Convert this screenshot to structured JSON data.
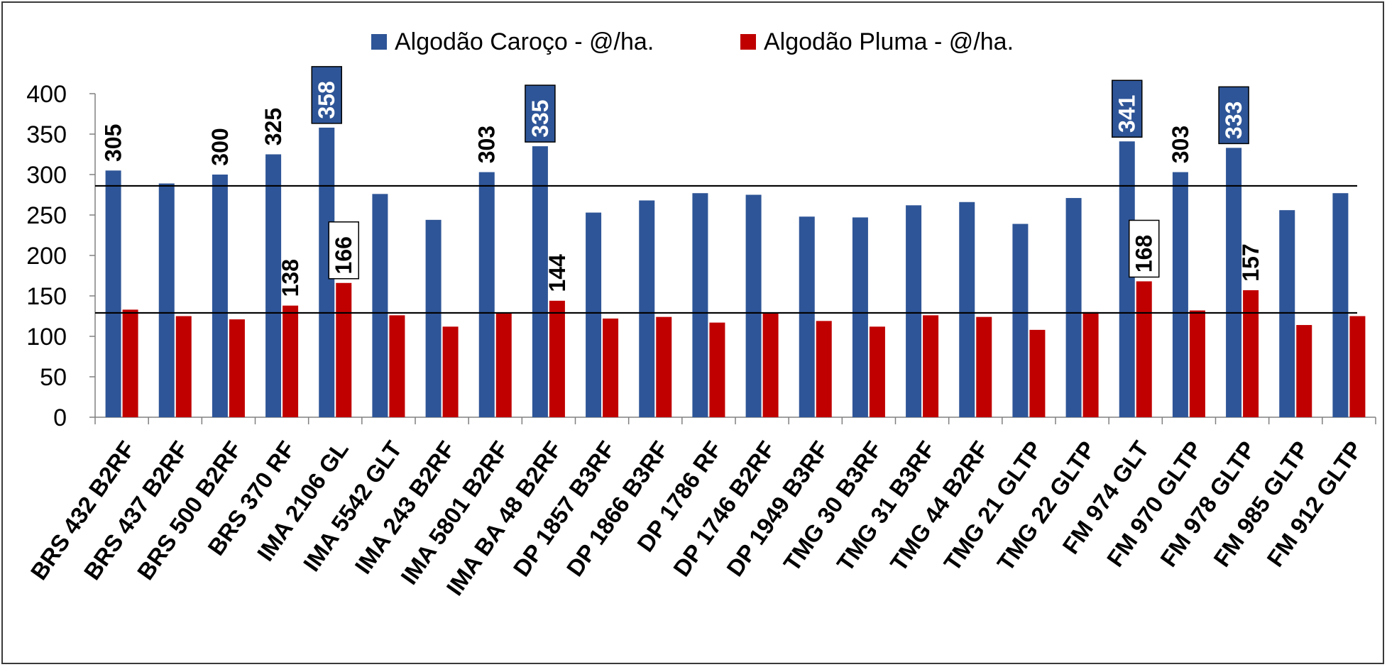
{
  "chart_data": {
    "type": "bar",
    "categories": [
      "BRS 432 B2RF",
      "BRS 437 B2RF",
      "BRS 500 B2RF",
      "BRS 370 RF",
      "IMA 2106 GL",
      "IMA 5542 GLT",
      "IMA 243 B2RF",
      "IMA 5801 B2RF",
      "IMA BA 48 B2RF",
      "DP 1857 B3RF",
      "DP 1866 B3RF",
      "DP 1786 RF",
      "DP 1746 B2RF",
      "DP 1949 B3RF",
      "TMG 30 B3RF",
      "TMG 31 B3RF",
      "TMG 44 B2RF",
      "TMG 21 GLTP",
      "TMG 22 GLTP",
      "FM 974 GLT",
      "FM 970 GLTP",
      "FM 978 GLTP",
      "FM 985 GLTP",
      "FM 912 GLTP"
    ],
    "series": [
      {
        "name": "Algodão Caroço - @/ha.",
        "color": "#2E5597",
        "values": [
          305,
          289,
          300,
          325,
          358,
          276,
          244,
          303,
          335,
          253,
          268,
          277,
          275,
          248,
          247,
          262,
          266,
          239,
          271,
          341,
          303,
          333,
          256,
          277
        ]
      },
      {
        "name": "Algodão Pluma - @/ha.",
        "color": "#C00000",
        "values": [
          133,
          125,
          121,
          138,
          166,
          126,
          112,
          129,
          144,
          122,
          124,
          117,
          129,
          119,
          112,
          126,
          124,
          108,
          130,
          168,
          132,
          157,
          114,
          125
        ]
      }
    ],
    "reference_lines": [
      286,
      129
    ],
    "ylim": [
      0,
      400
    ],
    "yticks": [
      0,
      50,
      100,
      150,
      200,
      250,
      300,
      350,
      400
    ],
    "data_labels": [
      {
        "series": 0,
        "index": 0,
        "text": "305",
        "boxed": false
      },
      {
        "series": 0,
        "index": 2,
        "text": "300",
        "boxed": false
      },
      {
        "series": 0,
        "index": 3,
        "text": "325",
        "boxed": false
      },
      {
        "series": 0,
        "index": 4,
        "text": "358",
        "boxed": true
      },
      {
        "series": 0,
        "index": 7,
        "text": "303",
        "boxed": false
      },
      {
        "series": 0,
        "index": 8,
        "text": "335",
        "boxed": true
      },
      {
        "series": 0,
        "index": 19,
        "text": "341",
        "boxed": true
      },
      {
        "series": 0,
        "index": 20,
        "text": "303",
        "boxed": false
      },
      {
        "series": 0,
        "index": 21,
        "text": "333",
        "boxed": true
      },
      {
        "series": 1,
        "index": 3,
        "text": "138",
        "boxed": false
      },
      {
        "series": 1,
        "index": 4,
        "text": "166",
        "boxed": true
      },
      {
        "series": 1,
        "index": 8,
        "text": "144",
        "boxed": false
      },
      {
        "series": 1,
        "index": 19,
        "text": "168",
        "boxed": true
      },
      {
        "series": 1,
        "index": 21,
        "text": "157",
        "boxed": false
      }
    ],
    "legend_position": "top",
    "grid": false
  }
}
